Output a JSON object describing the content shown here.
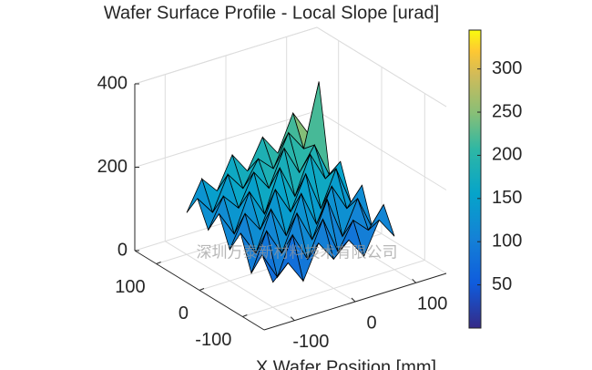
{
  "chart_data": {
    "type": "surface",
    "title": "Wafer Surface Profile - Local Slope [urad]",
    "xlabel": "X Wafer Position [mm]",
    "watermark": "深圳万泰新材料技术有限公司",
    "x": [
      -100,
      -75,
      -50,
      -25,
      0,
      25,
      50,
      75,
      100
    ],
    "y": [
      -100,
      -75,
      -50,
      -25,
      0,
      25,
      50,
      75,
      100
    ],
    "z": [
      [
        60,
        95,
        40,
        120,
        70,
        105,
        55,
        130,
        80
      ],
      [
        110,
        45,
        135,
        65,
        150,
        60,
        125,
        90,
        140
      ],
      [
        50,
        140,
        75,
        160,
        85,
        170,
        70,
        150,
        65
      ],
      [
        130,
        70,
        165,
        90,
        180,
        95,
        175,
        110,
        155
      ],
      [
        75,
        150,
        100,
        185,
        120,
        200,
        105,
        190,
        95
      ],
      [
        145,
        85,
        175,
        110,
        210,
        130,
        220,
        150,
        180
      ],
      [
        90,
        160,
        120,
        195,
        145,
        230,
        160,
        215,
        130
      ],
      [
        150,
        105,
        185,
        140,
        200,
        165,
        240,
        190,
        340
      ],
      [
        100,
        170,
        130,
        205,
        155,
        225,
        175,
        260,
        200
      ]
    ],
    "xlim": [
      -150,
      150
    ],
    "ylim": [
      -150,
      150
    ],
    "zlim": [
      0,
      400
    ],
    "xticks": [
      -100,
      0,
      100
    ],
    "yticks": [
      -100,
      0,
      100
    ],
    "zticks": [
      0,
      200,
      400
    ],
    "clim": [
      0,
      345
    ],
    "cticks": [
      50,
      100,
      150,
      200,
      250,
      300
    ],
    "grid": true,
    "colormap": "parula",
    "edge_color": "#000000"
  }
}
